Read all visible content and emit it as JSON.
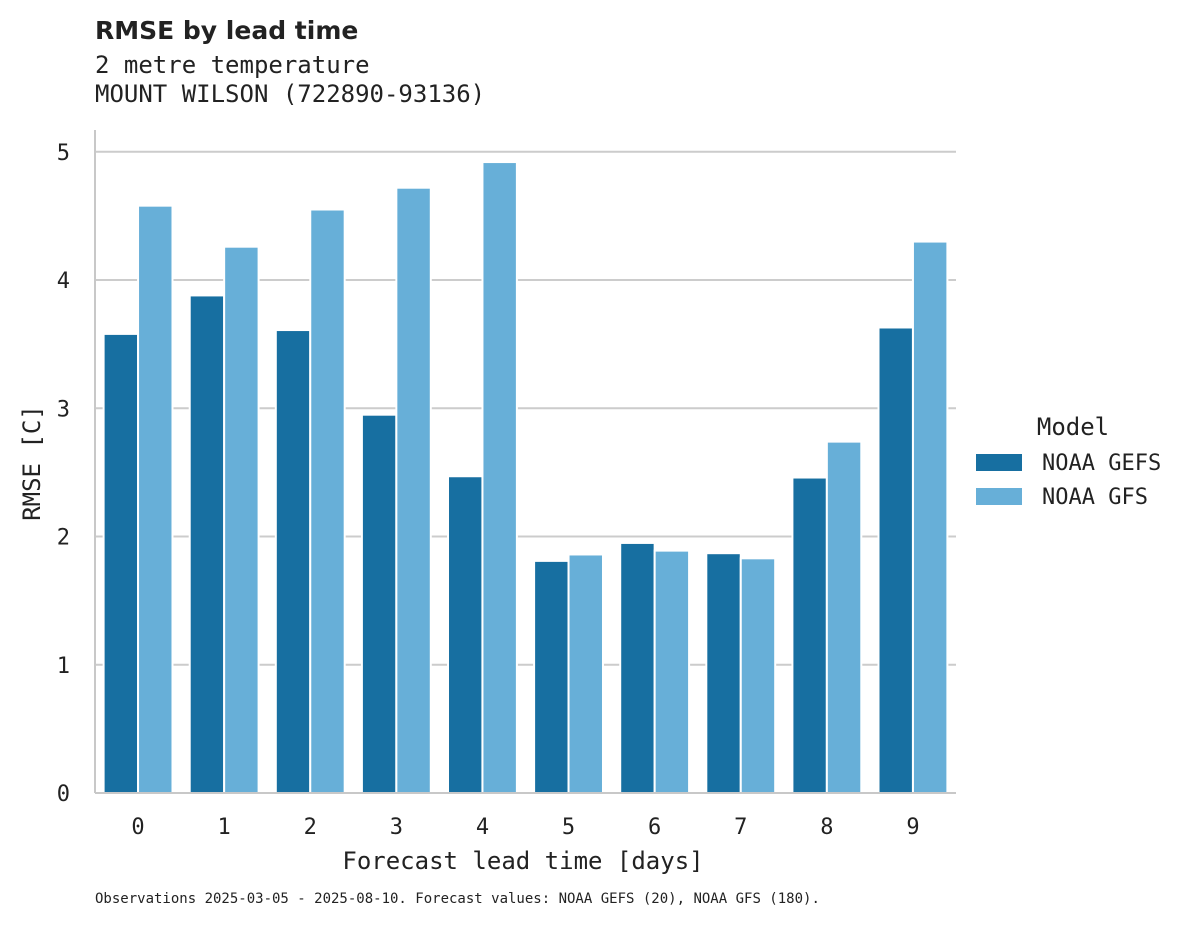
{
  "chart_data": {
    "type": "bar",
    "title": "RMSE by lead time",
    "subtitle_lines": [
      "2 metre temperature",
      "MOUNT WILSON (722890-93136)"
    ],
    "xlabel": "Forecast lead time [days]",
    "ylabel": "RMSE [C]",
    "categories": [
      "0",
      "1",
      "2",
      "3",
      "4",
      "5",
      "6",
      "7",
      "8",
      "9"
    ],
    "yticks": [
      "0",
      "1",
      "2",
      "3",
      "4",
      "5"
    ],
    "ylim": [
      0,
      5.17
    ],
    "grid": "horizontal",
    "legend_title": "Model",
    "legend_position": "right",
    "series": [
      {
        "name": "NOAA GEFS",
        "color": "#176FA1",
        "values": [
          3.58,
          3.88,
          3.61,
          2.95,
          2.47,
          1.81,
          1.95,
          1.87,
          2.46,
          3.63
        ]
      },
      {
        "name": "NOAA GFS",
        "color": "#67AFD8",
        "values": [
          4.58,
          4.26,
          4.55,
          4.72,
          4.92,
          1.86,
          1.89,
          1.83,
          2.74,
          4.3
        ]
      }
    ],
    "footnote": "Observations 2025-03-05 - 2025-08-10. Forecast values: NOAA GEFS (20), NOAA GFS (180)."
  }
}
